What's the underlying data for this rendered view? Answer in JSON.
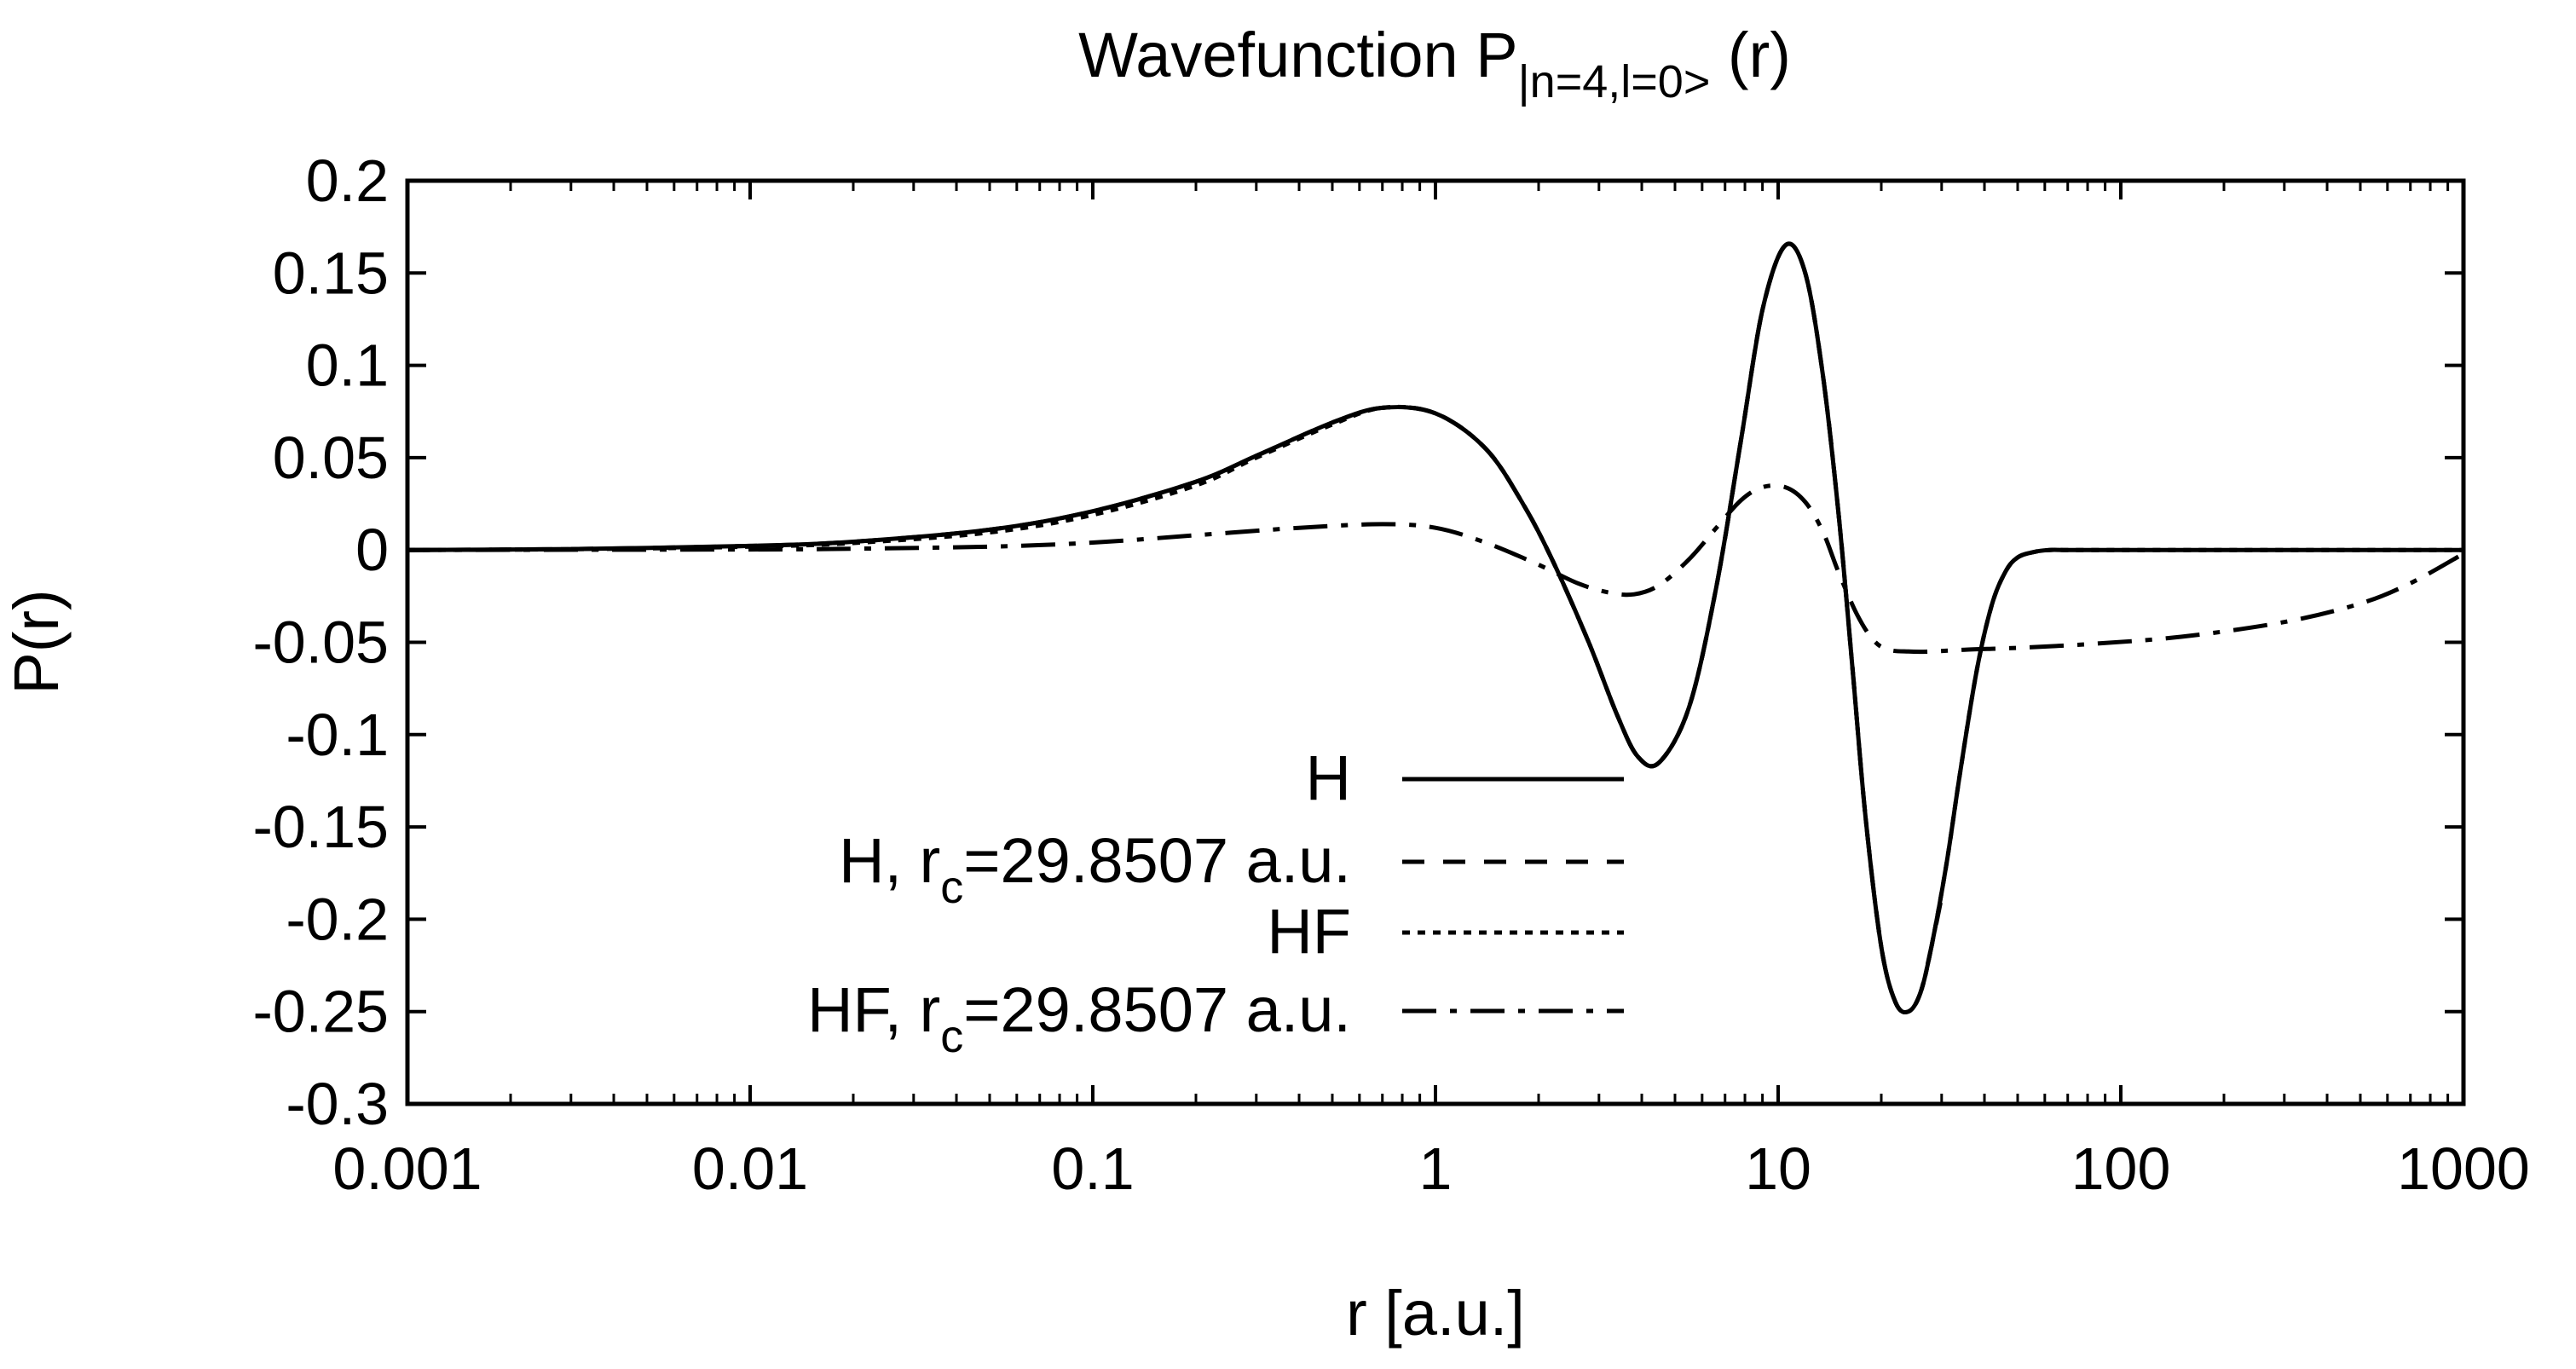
{
  "chart_data": {
    "type": "line",
    "title": {
      "main": "Wavefunction P",
      "subscript": "|n=4,l=0>",
      "suffix": " (r)"
    },
    "xlabel": "r [a.u.]",
    "ylabel": "P(r)",
    "xscale": "log",
    "xlim": [
      0.001,
      1000
    ],
    "ylim": [
      -0.3,
      0.2
    ],
    "grid": false,
    "legend_position": "bottom-center",
    "x_ticks": [
      {
        "value": 0.001,
        "label": "0.001"
      },
      {
        "value": 0.01,
        "label": "0.01"
      },
      {
        "value": 0.1,
        "label": "0.1"
      },
      {
        "value": 1,
        "label": "1"
      },
      {
        "value": 10,
        "label": "10"
      },
      {
        "value": 100,
        "label": "100"
      },
      {
        "value": 1000,
        "label": "1000"
      }
    ],
    "y_ticks": [
      {
        "value": 0.2,
        "label": "0.2"
      },
      {
        "value": 0.15,
        "label": "0.15"
      },
      {
        "value": 0.1,
        "label": "0.1"
      },
      {
        "value": 0.05,
        "label": "0.05"
      },
      {
        "value": 0,
        "label": "0"
      },
      {
        "value": -0.05,
        "label": "-0.05"
      },
      {
        "value": -0.1,
        "label": "-0.1"
      },
      {
        "value": -0.15,
        "label": "-0.15"
      },
      {
        "value": -0.2,
        "label": "-0.2"
      },
      {
        "value": -0.25,
        "label": "-0.25"
      },
      {
        "value": -0.3,
        "label": "-0.3"
      }
    ],
    "series": [
      {
        "name": "H",
        "legend": {
          "main": "H",
          "subscript": "",
          "suffix": ""
        },
        "dash": "solid",
        "x": [
          0.001,
          0.003,
          0.01,
          0.02,
          0.05,
          0.1,
          0.2,
          0.3,
          0.5,
          0.7,
          1.0,
          1.4,
          1.8,
          2.2,
          2.8,
          3.4,
          3.9,
          4.5,
          5.5,
          6.6,
          7.8,
          9.0,
          10.5,
          12.0,
          13.5,
          15.0,
          16.5,
          18.0,
          20.0,
          22.0,
          24.0,
          26.0,
          28.0,
          31.0,
          34.0,
          38.0,
          42.0,
          46.0,
          50.0,
          56.0,
          62.0,
          68.0,
          75.0,
          85.0,
          100.0,
          200.0,
          1000.0
        ],
        "y": [
          0.0,
          0.0005,
          0.0022,
          0.0045,
          0.011,
          0.021,
          0.037,
          0.051,
          0.069,
          0.077,
          0.074,
          0.055,
          0.025,
          -0.006,
          -0.05,
          -0.09,
          -0.112,
          -0.115,
          -0.085,
          -0.02,
          0.06,
          0.13,
          0.165,
          0.15,
          0.095,
          0.02,
          -0.065,
          -0.145,
          -0.215,
          -0.245,
          -0.25,
          -0.24,
          -0.215,
          -0.17,
          -0.12,
          -0.065,
          -0.03,
          -0.012,
          -0.004,
          -0.001,
          0.0,
          0.0,
          0.0,
          0.0,
          0.0,
          0.0,
          0.0
        ]
      },
      {
        "name": "H, r_c=29.8507 a.u.",
        "legend": {
          "main": "H, r",
          "subscript": "c",
          "suffix": "=29.8507 a.u."
        },
        "dash": "dashed",
        "x": [
          0.001,
          0.003,
          0.01,
          0.02,
          0.05,
          0.1,
          0.2,
          0.3,
          0.5,
          0.7,
          1.0,
          1.4,
          1.8,
          2.2,
          2.8,
          3.4,
          3.9,
          4.5,
          5.5,
          6.6,
          7.8,
          9.0,
          10.5,
          12.0,
          13.5,
          15.0,
          16.5,
          18.0,
          20.0,
          22.0,
          24.0,
          26.0,
          28.0,
          29.8507
        ],
        "y": [
          0.0,
          0.0005,
          0.0022,
          0.0045,
          0.011,
          0.021,
          0.037,
          0.051,
          0.069,
          0.077,
          0.074,
          0.055,
          0.025,
          -0.006,
          -0.05,
          -0.09,
          -0.112,
          -0.115,
          -0.085,
          -0.02,
          0.06,
          0.13,
          0.165,
          0.15,
          0.095,
          0.02,
          -0.065,
          -0.145,
          -0.215,
          -0.245,
          -0.25,
          -0.24,
          -0.215,
          -0.19
        ]
      },
      {
        "name": "HF",
        "legend": {
          "main": "HF",
          "subscript": "",
          "suffix": ""
        },
        "dash": "dotted",
        "x": [
          0.001,
          0.003,
          0.01,
          0.02,
          0.05,
          0.1,
          0.2,
          0.3,
          0.5,
          0.7,
          1.0,
          1.4,
          1.8,
          2.2,
          2.8,
          3.4,
          3.9,
          4.5,
          5.5,
          6.6,
          7.8,
          9.0,
          10.5,
          12.0,
          13.5,
          15.0,
          16.5,
          18.0,
          20.0,
          22.0,
          24.0,
          26.0,
          28.0,
          31.0,
          34.0,
          38.0,
          42.0,
          46.0,
          50.0,
          56.0,
          62.0,
          68.0,
          75.0,
          85.0,
          100.0,
          200.0,
          1000.0
        ],
        "y": [
          0.0,
          0.0004,
          0.0018,
          0.0038,
          0.0095,
          0.019,
          0.035,
          0.05,
          0.068,
          0.077,
          0.074,
          0.055,
          0.025,
          -0.006,
          -0.05,
          -0.09,
          -0.112,
          -0.115,
          -0.085,
          -0.02,
          0.06,
          0.13,
          0.165,
          0.15,
          0.095,
          0.02,
          -0.065,
          -0.145,
          -0.215,
          -0.245,
          -0.25,
          -0.24,
          -0.215,
          -0.17,
          -0.12,
          -0.065,
          -0.03,
          -0.012,
          -0.004,
          -0.001,
          0.0,
          0.0,
          0.0,
          0.0,
          0.0,
          0.0,
          0.0
        ]
      },
      {
        "name": "HF, r_c=29.8507 a.u.",
        "legend": {
          "main": "HF, r",
          "subscript": "c",
          "suffix": "=29.8507 a.u."
        },
        "dash": "dash-dot",
        "x": [
          0.001,
          0.01,
          0.02,
          0.05,
          0.1,
          0.2,
          0.4,
          0.7,
          1.0,
          1.4,
          2.0,
          2.6,
          3.2,
          3.8,
          4.5,
          5.5,
          6.6,
          7.8,
          9.0,
          10.5,
          12.0,
          13.5,
          15.0,
          17.0,
          19.0,
          21.0,
          24.0,
          28.0,
          35.0,
          50.0,
          80.0,
          150.0,
          300.0,
          500.0,
          700.0,
          1000.0
        ],
        "y": [
          0.0,
          0.0003,
          0.0007,
          0.0018,
          0.004,
          0.008,
          0.012,
          0.014,
          0.012,
          0.004,
          -0.008,
          -0.018,
          -0.023,
          -0.024,
          -0.019,
          -0.005,
          0.012,
          0.027,
          0.034,
          0.034,
          0.026,
          0.01,
          -0.012,
          -0.035,
          -0.049,
          -0.054,
          -0.055,
          -0.055,
          -0.054,
          -0.053,
          -0.051,
          -0.047,
          -0.039,
          -0.029,
          -0.018,
          -0.002
        ]
      }
    ]
  }
}
